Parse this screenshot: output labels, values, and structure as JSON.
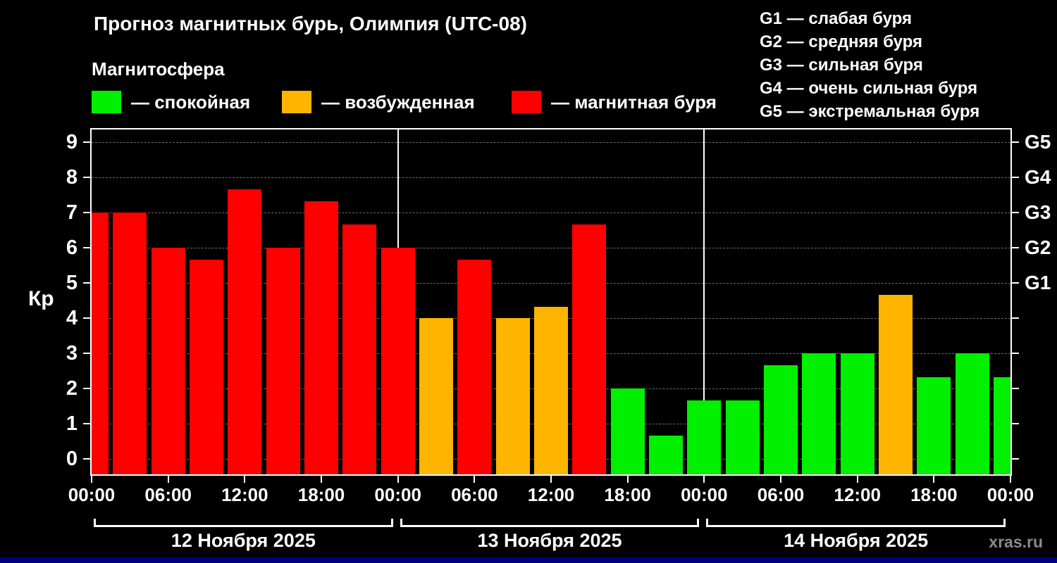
{
  "header": {
    "title": "Прогноз магнитных бурь, Олимпия (UTC-08)",
    "subtitle": "Магнитосфера"
  },
  "legend": {
    "items": [
      {
        "name": "quiet",
        "label": "— спокойная",
        "color": "#00f000"
      },
      {
        "name": "active",
        "label": "— возбужденная",
        "color": "#ffb400"
      },
      {
        "name": "storm",
        "label": "— магнитная буря",
        "color": "#ff0000"
      }
    ]
  },
  "g_legend": {
    "items": [
      "G1 — слабая буря",
      "G2 — средняя буря",
      "G3 — сильная буря",
      "G4 — очень сильная буря",
      "G5 — экстремальная буря"
    ]
  },
  "watermark": "xras.ru",
  "chart_data": {
    "type": "bar",
    "title": "Прогноз магнитных бурь, Олимпия (UTC-08)",
    "subtitle": "Магнитосфера",
    "ylabel": "Кр",
    "xlabel": "",
    "ylim": [
      0,
      9
    ],
    "y_ticks": [
      0,
      1,
      2,
      3,
      4,
      5,
      6,
      7,
      8,
      9
    ],
    "x_tick_labels": [
      "00:00",
      "06:00",
      "12:00",
      "18:00",
      "00:00",
      "06:00",
      "12:00",
      "18:00",
      "00:00",
      "06:00",
      "12:00",
      "18:00",
      "00:00"
    ],
    "right_axis": [
      {
        "label": "G1",
        "kp": 5
      },
      {
        "label": "G2",
        "kp": 6
      },
      {
        "label": "G3",
        "kp": 7
      },
      {
        "label": "G4",
        "kp": 8
      },
      {
        "label": "G5",
        "kp": 9
      }
    ],
    "state_colors": {
      "quiet": "#00f000",
      "active": "#ffb400",
      "storm": "#ff0000"
    },
    "grid": "dashed-horizontal",
    "legend_position": "top-left",
    "days": [
      "12 Ноября 2025",
      "13 Ноября 2025",
      "14 Ноября 2025"
    ],
    "bars": [
      {
        "day": "12 Ноября 2025",
        "time": "00:00",
        "kp": 7.0,
        "state": "storm"
      },
      {
        "day": "12 Ноября 2025",
        "time": "03:00",
        "kp": 7.0,
        "state": "storm"
      },
      {
        "day": "12 Ноября 2025",
        "time": "06:00",
        "kp": 6.0,
        "state": "storm"
      },
      {
        "day": "12 Ноября 2025",
        "time": "09:00",
        "kp": 5.67,
        "state": "storm"
      },
      {
        "day": "12 Ноября 2025",
        "time": "12:00",
        "kp": 7.67,
        "state": "storm"
      },
      {
        "day": "12 Ноября 2025",
        "time": "15:00",
        "kp": 6.0,
        "state": "storm"
      },
      {
        "day": "12 Ноября 2025",
        "time": "18:00",
        "kp": 7.33,
        "state": "storm"
      },
      {
        "day": "12 Ноября 2025",
        "time": "21:00",
        "kp": 6.67,
        "state": "storm"
      },
      {
        "day": "13 Ноября 2025",
        "time": "00:00",
        "kp": 6.0,
        "state": "storm"
      },
      {
        "day": "13 Ноября 2025",
        "time": "03:00",
        "kp": 4.0,
        "state": "active"
      },
      {
        "day": "13 Ноября 2025",
        "time": "06:00",
        "kp": 5.67,
        "state": "storm"
      },
      {
        "day": "13 Ноября 2025",
        "time": "09:00",
        "kp": 4.0,
        "state": "active"
      },
      {
        "day": "13 Ноября 2025",
        "time": "12:00",
        "kp": 4.33,
        "state": "active"
      },
      {
        "day": "13 Ноября 2025",
        "time": "15:00",
        "kp": 6.67,
        "state": "storm"
      },
      {
        "day": "13 Ноября 2025",
        "time": "18:00",
        "kp": 2.0,
        "state": "quiet"
      },
      {
        "day": "13 Ноября 2025",
        "time": "21:00",
        "kp": 0.67,
        "state": "quiet"
      },
      {
        "day": "14 Ноября 2025",
        "time": "00:00",
        "kp": 1.67,
        "state": "quiet"
      },
      {
        "day": "14 Ноября 2025",
        "time": "03:00",
        "kp": 1.67,
        "state": "quiet"
      },
      {
        "day": "14 Ноября 2025",
        "time": "06:00",
        "kp": 2.67,
        "state": "quiet"
      },
      {
        "day": "14 Ноября 2025",
        "time": "09:00",
        "kp": 3.0,
        "state": "quiet"
      },
      {
        "day": "14 Ноября 2025",
        "time": "12:00",
        "kp": 3.0,
        "state": "quiet"
      },
      {
        "day": "14 Ноября 2025",
        "time": "15:00",
        "kp": 4.67,
        "state": "active"
      },
      {
        "day": "14 Ноября 2025",
        "time": "18:00",
        "kp": 2.33,
        "state": "quiet"
      },
      {
        "day": "14 Ноября 2025",
        "time": "21:00",
        "kp": 3.0,
        "state": "quiet"
      },
      {
        "day": "14 Ноября 2025",
        "time": "24:00",
        "kp": 2.33,
        "state": "quiet"
      }
    ]
  }
}
